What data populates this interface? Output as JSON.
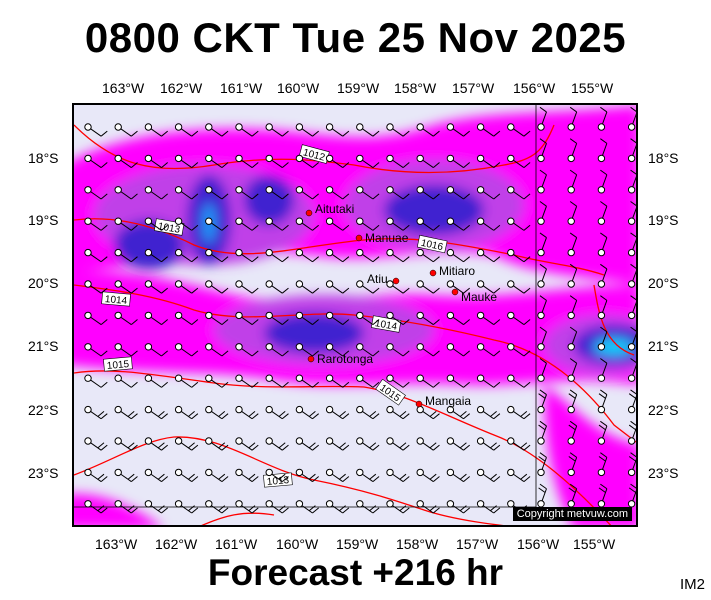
{
  "title": "0800 CKT Tue 25 Nov 2025",
  "footer": "Forecast +216 hr",
  "image_code": "IM2",
  "copyright": "Copyright metvuw.com",
  "colors": {
    "background": "#e8e8f8",
    "precip_light": "#ff00ff",
    "precip_mid": "#c040e8",
    "precip_heavy": "#4020d0",
    "precip_extreme": "#00d0ff",
    "isobar": "#ff0000",
    "island_marker": "#ff0000"
  },
  "axes": {
    "longitude_labels": [
      "163°W",
      "162°W",
      "161°W",
      "160°W",
      "159°W",
      "158°W",
      "157°W",
      "156°W",
      "155°W"
    ],
    "latitude_labels": [
      "18°S",
      "19°S",
      "20°S",
      "21°S",
      "22°S",
      "23°S"
    ]
  },
  "islands": [
    {
      "name": "Aitutaki"
    },
    {
      "name": "Manuae"
    },
    {
      "name": "Mitiaro"
    },
    {
      "name": "Atiu"
    },
    {
      "name": "Mauke"
    },
    {
      "name": "Rarotonga"
    },
    {
      "name": "Mangaia"
    }
  ],
  "isobar_labels": [
    "1012",
    "1013",
    "1013",
    "1014",
    "1014",
    "1015",
    "1015",
    "1016"
  ]
}
